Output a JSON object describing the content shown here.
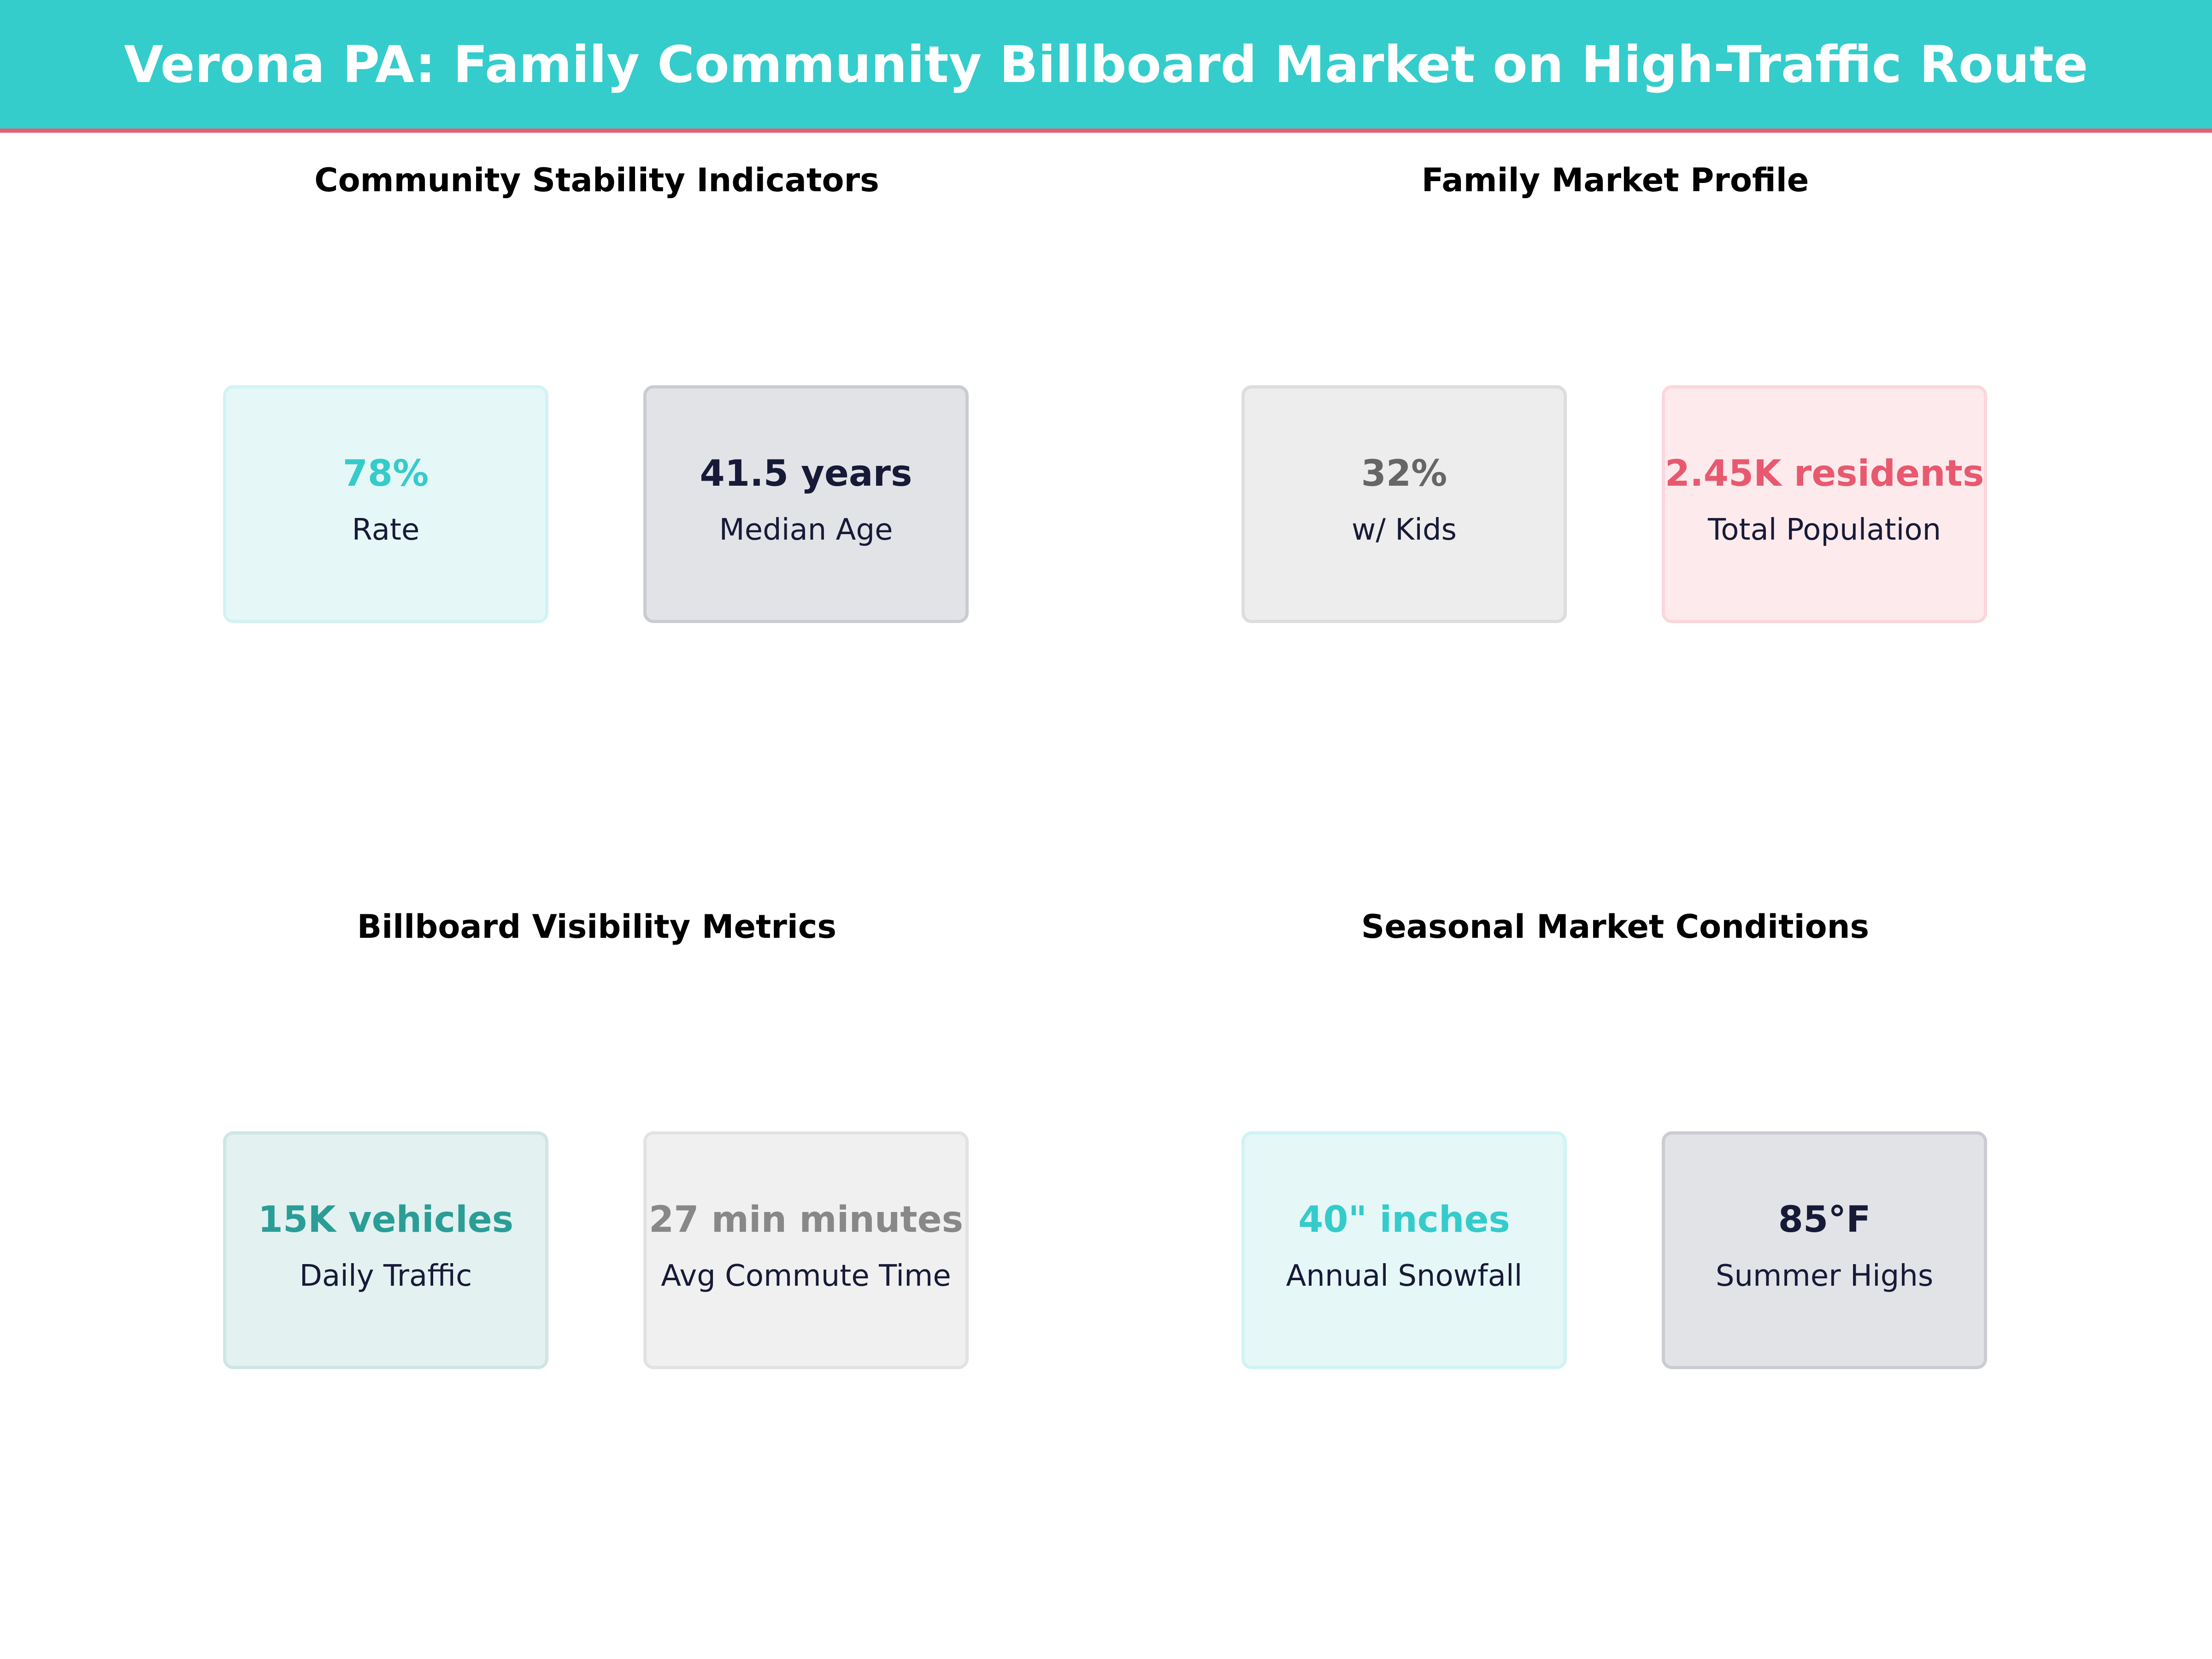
{
  "title": "Verona PA: Family Community Billboard Market on High-Traffic Route",
  "colors": {
    "header": "#35cccc",
    "accent_line": "#e85d75"
  },
  "sections": [
    {
      "title": "Community Stability Indicators",
      "cards": [
        {
          "value": "78%",
          "label": "Rate",
          "value_color": "#35cbcb"
        },
        {
          "value": "41.5 years",
          "label": "Median Age",
          "value_color": "#171a37"
        }
      ]
    },
    {
      "title": "Family Market Profile",
      "cards": [
        {
          "value": "32%",
          "label": "w/ Kids",
          "value_color": "#666666"
        },
        {
          "value": "2.45K residents",
          "label": "Total Population",
          "value_color": "#e8596f"
        }
      ]
    },
    {
      "title": "Billboard Visibility Metrics",
      "cards": [
        {
          "value": "15K vehicles",
          "label": "Daily Traffic",
          "value_color": "#2a9d96"
        },
        {
          "value": "27 min minutes",
          "label": "Avg Commute Time",
          "value_color": "#888888"
        }
      ]
    },
    {
      "title": "Seasonal Market Conditions",
      "cards": [
        {
          "value": "40\" inches",
          "label": "Annual Snowfall",
          "value_color": "#35cbcb"
        },
        {
          "value": "85°F",
          "label": "Summer Highs",
          "value_color": "#171a37"
        }
      ]
    }
  ]
}
